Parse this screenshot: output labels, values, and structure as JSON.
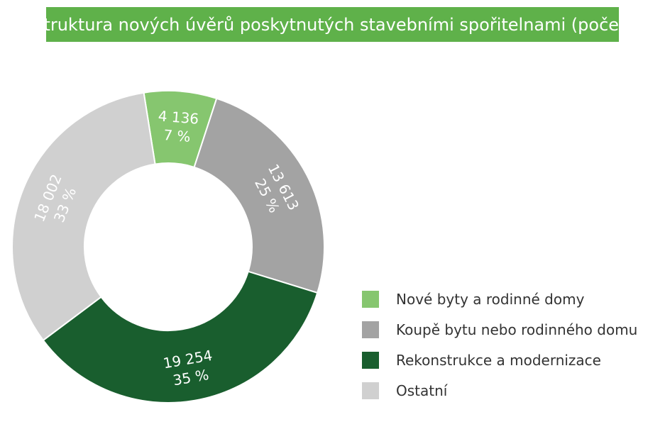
{
  "title": "Struktura nových úvěrů poskytnutých stavebními spořitelnami (počet)",
  "colors": {
    "title_bg": "#5fb14a",
    "nove_byty": "#86c66f",
    "koupe": "#a3a3a3",
    "rekonstrukce": "#195e2e",
    "ostatni": "#d0d0d0"
  },
  "chart_data": {
    "type": "pie",
    "variant": "donut",
    "title": "Struktura nových úvěrů poskytnutých stavebními spořitelnami (počet)",
    "legend_position": "bottom-right",
    "slices": [
      {
        "name": "Nové byty a rodinné domy",
        "value": 4136,
        "value_label": "4 136",
        "percent_label": "7 %",
        "color": "#86c66f"
      },
      {
        "name": "Koupě bytu nebo rodinného domu",
        "value": 13613,
        "value_label": "13 613",
        "percent_label": "25 %",
        "color": "#a3a3a3"
      },
      {
        "name": "Rekonstrukce a modernizace",
        "value": 19254,
        "value_label": "19 254",
        "percent_label": "35 %",
        "color": "#195e2e"
      },
      {
        "name": "Ostatní",
        "value": 18002,
        "value_label": "18 002",
        "percent_label": "33 %",
        "color": "#d0d0d0"
      }
    ]
  }
}
